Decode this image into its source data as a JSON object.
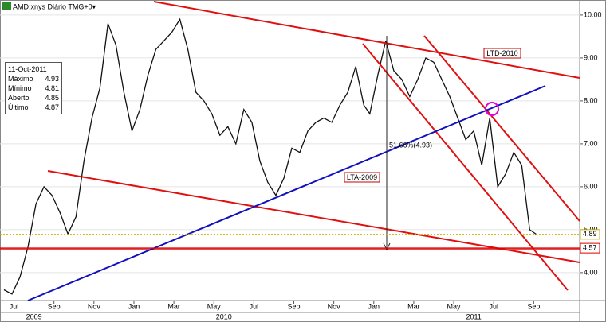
{
  "chart_data": {
    "type": "line",
    "title": "AMD:xnys Diário TMG+0▾",
    "x": [
      -0.5,
      -0.1,
      0.3,
      0.7,
      1.1,
      1.5,
      1.9,
      2.3,
      2.7,
      3.1,
      3.5,
      3.9,
      4.3,
      4.7,
      5.1,
      5.5,
      5.9,
      6.3,
      6.7,
      7.1,
      7.5,
      7.9,
      8.3,
      8.7,
      9.1,
      9.5,
      9.9,
      10.3,
      10.7,
      11.1,
      11.5,
      11.9,
      12.3,
      12.7,
      13.1,
      13.5,
      13.9,
      14.3,
      14.7,
      15.1,
      15.5,
      15.9,
      16.3,
      16.7,
      17.1,
      17.5,
      17.8,
      18.2,
      18.6,
      19.0,
      19.4,
      19.8,
      20.2,
      20.6,
      21.0,
      21.4,
      21.8,
      22.2,
      22.6,
      23.0,
      23.4,
      23.8,
      24.2,
      24.6,
      25.0,
      25.4,
      25.8,
      26.2
    ],
    "series": [
      {
        "name": "AMD",
        "color": "#111111",
        "values": [
          3.6,
          3.5,
          3.9,
          4.6,
          5.6,
          6.0,
          5.8,
          5.4,
          4.9,
          5.3,
          6.6,
          7.6,
          8.3,
          9.8,
          9.3,
          8.2,
          7.3,
          7.8,
          8.6,
          9.2,
          9.4,
          9.6,
          9.9,
          9.2,
          8.2,
          8.0,
          7.7,
          7.2,
          7.4,
          7.0,
          7.8,
          7.5,
          6.6,
          6.1,
          5.8,
          6.2,
          6.9,
          6.8,
          7.3,
          7.5,
          7.6,
          7.5,
          7.9,
          8.2,
          8.8,
          7.9,
          7.7,
          8.6,
          9.4,
          8.7,
          8.5,
          8.1,
          8.5,
          9.0,
          8.9,
          8.5,
          8.1,
          7.6,
          7.1,
          7.3,
          6.5,
          7.6,
          6.0,
          6.3,
          6.8,
          6.5,
          5.0,
          4.87
        ]
      }
    ],
    "xlim": [
      -0.7,
      28.3
    ],
    "ylim": [
      3.35,
      10.35
    ],
    "xticks": [
      {
        "value": 0,
        "label": "Jul"
      },
      {
        "value": 2,
        "label": "Sep"
      },
      {
        "value": 4,
        "label": "Nov"
      },
      {
        "value": 6,
        "label": "Jan"
      },
      {
        "value": 8,
        "label": "Mar"
      },
      {
        "value": 10,
        "label": "May"
      },
      {
        "value": 12,
        "label": "Jul"
      },
      {
        "value": 14,
        "label": "Sep"
      },
      {
        "value": 16,
        "label": "Nov"
      },
      {
        "value": 18,
        "label": "Jan"
      },
      {
        "value": 20,
        "label": "Mar"
      },
      {
        "value": 22,
        "label": "May"
      },
      {
        "value": 24,
        "label": "Jul"
      },
      {
        "value": 26,
        "label": "Sep"
      }
    ],
    "years": [
      {
        "value": 1,
        "label": "2009"
      },
      {
        "value": 10.5,
        "label": "2010"
      },
      {
        "value": 23,
        "label": "2011"
      }
    ],
    "yticks": [
      {
        "value": 4,
        "label": "4.00"
      },
      {
        "value": 5,
        "label": "5.00"
      },
      {
        "value": 6,
        "label": "6.00"
      },
      {
        "value": 7,
        "label": "7.00"
      },
      {
        "value": 8,
        "label": "8.00"
      },
      {
        "value": 9,
        "label": "9.00"
      },
      {
        "value": 10,
        "label": "10.00"
      }
    ],
    "levels": [
      {
        "value": 4.89,
        "color": "#c8b400"
      },
      {
        "value": 4.57,
        "color": "#dd0000"
      }
    ],
    "annotations": {
      "ltd": "LTD-2010",
      "lta": "LTA-2009",
      "pct": "51.66%(4.93)"
    },
    "info": {
      "date": "11-Oct-2011",
      "rows": [
        [
          "Máximo",
          4.93
        ],
        [
          "Mínimo",
          4.81
        ],
        [
          "Aberto",
          4.85
        ],
        [
          "Último",
          4.87
        ]
      ]
    }
  }
}
